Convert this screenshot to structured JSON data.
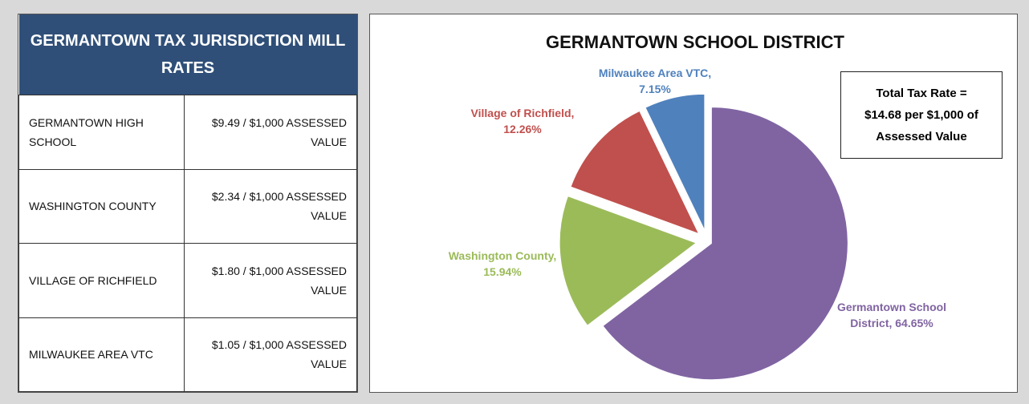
{
  "table": {
    "title": "GERMANTOWN TAX JURISDICTION MILL RATES",
    "rows": [
      [
        "GERMANTOWN HIGH SCHOOL",
        "$9.49 / $1,000 ASSESSED VALUE"
      ],
      [
        "WASHINGTON COUNTY",
        "$2.34 / $1,000 ASSESSED VALUE"
      ],
      [
        "VILLAGE OF RICHFIELD",
        "$1.80 / $1,000 ASSESSED VALUE"
      ],
      [
        "MILWAUKEE AREA VTC",
        "$1.05 / $1,000 ASSESSED VALUE"
      ]
    ]
  },
  "chart_data": {
    "type": "pie",
    "title": "GERMANTOWN SCHOOL DISTRICT",
    "values": [
      64.65,
      15.94,
      12.26,
      7.15
    ],
    "value_labels": [
      "Germantown School District, 64.65%",
      "Washington County, 15.94%",
      "Village of Richfield, 12.26%",
      "Milwaukee Area VTC, 7.15%"
    ],
    "colors": [
      "#8064a2",
      "#9bbb59",
      "#c0504d",
      "#4f81bd"
    ],
    "annotation": [
      "Total Tax Rate =",
      "$14.68 per $1,000 of",
      "Assessed Value"
    ]
  }
}
